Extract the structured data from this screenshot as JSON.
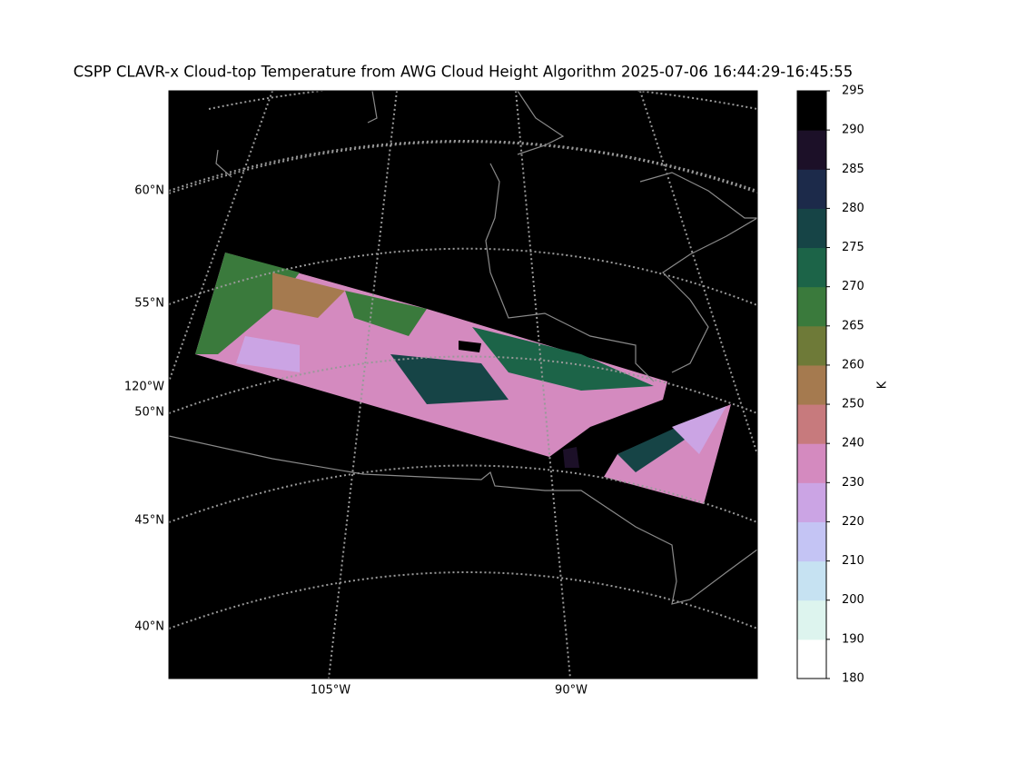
{
  "title": "CSPP CLAVR-x Cloud-top Temperature from AWG Cloud Height Algorithm 2025-07-06 16:44:29-16:45:55",
  "lat_labels": [
    "60°N",
    "55°N",
    "120°W",
    "50°N",
    "45°N",
    "40°N"
  ],
  "lon_labels": [
    "105°W",
    "90°W"
  ],
  "colorbar": {
    "label": "K",
    "ticks": [
      180,
      190,
      200,
      210,
      220,
      230,
      240,
      250,
      260,
      265,
      270,
      275,
      280,
      285,
      290,
      295
    ],
    "colors": [
      "#ffffff",
      "#ddf4ee",
      "#c6e2f2",
      "#c4c4f4",
      "#cba4e4",
      "#d48abf",
      "#c77a7d",
      "#a57a4f",
      "#6e7a38",
      "#3a7a3c",
      "#1c6448",
      "#164446",
      "#1c2a4a",
      "#1c1028",
      "#000000"
    ]
  }
}
